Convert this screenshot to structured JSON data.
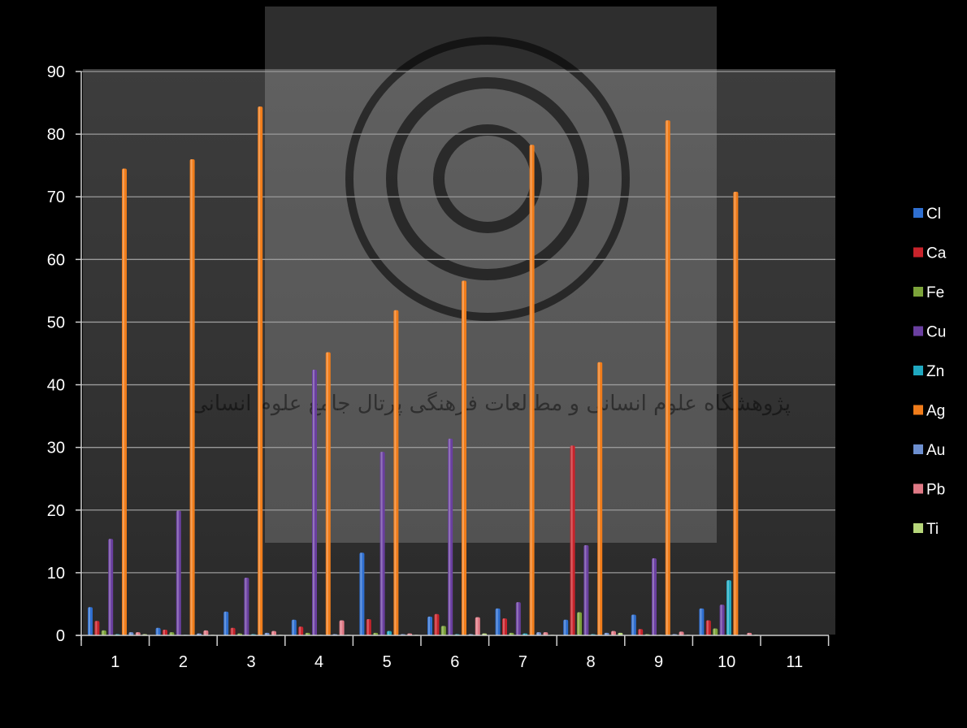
{
  "chart_data": {
    "type": "bar",
    "title": "",
    "xlabel": "",
    "ylabel": "",
    "ylim": [
      0,
      90
    ],
    "yticks": [
      0,
      10,
      20,
      30,
      40,
      50,
      60,
      70,
      80,
      90
    ],
    "categories": [
      "1",
      "2",
      "3",
      "4",
      "5",
      "6",
      "7",
      "8",
      "9",
      "10",
      "11"
    ],
    "grid": true,
    "legend_position": "right",
    "watermark": "پژوهشگاه علوم انسانی و مطالعات فرهنگی پرتال جامع علوم انسانی",
    "series": [
      {
        "name": "Cl",
        "color": "#2f6fd0",
        "values": [
          4.5,
          1.2,
          3.8,
          2.5,
          13.2,
          3.0,
          4.3,
          2.5,
          3.3,
          4.3,
          0
        ]
      },
      {
        "name": "Ca",
        "color": "#c8232b",
        "values": [
          2.3,
          0.9,
          1.2,
          1.4,
          2.6,
          3.4,
          2.7,
          30.3,
          1.0,
          2.4,
          0
        ]
      },
      {
        "name": "Fe",
        "color": "#7ca33a",
        "values": [
          0.8,
          0.5,
          0.3,
          0.4,
          0.4,
          1.5,
          0.4,
          3.7,
          0.2,
          1.1,
          0
        ]
      },
      {
        "name": "Cu",
        "color": "#6a3fa0",
        "values": [
          15.4,
          19.9,
          9.2,
          42.4,
          29.3,
          31.4,
          5.3,
          14.4,
          12.3,
          4.9,
          0
        ]
      },
      {
        "name": "Zn",
        "color": "#1fa8c0",
        "values": [
          0.2,
          0.1,
          0.2,
          0.1,
          0.7,
          0.2,
          0.3,
          0.2,
          0.1,
          8.8,
          0
        ]
      },
      {
        "name": "Ag",
        "color": "#f07c1a",
        "values": [
          74.5,
          76.0,
          84.4,
          45.2,
          51.9,
          56.6,
          78.3,
          43.6,
          82.2,
          70.8,
          0
        ]
      },
      {
        "name": "Au",
        "color": "#6d8fd0",
        "values": [
          0.5,
          0.3,
          0.4,
          0.2,
          0.2,
          0.2,
          0.5,
          0.4,
          0.2,
          0.1,
          0
        ]
      },
      {
        "name": "Pb",
        "color": "#e07a86",
        "values": [
          0.5,
          0.8,
          0.7,
          2.4,
          0.3,
          2.9,
          0.5,
          0.7,
          0.6,
          0.4,
          0
        ]
      },
      {
        "name": "Ti",
        "color": "#b6d67a",
        "values": [
          0.2,
          0.1,
          0.1,
          0.1,
          0.1,
          0.3,
          0.1,
          0.4,
          0.1,
          0.1,
          0
        ]
      }
    ]
  }
}
